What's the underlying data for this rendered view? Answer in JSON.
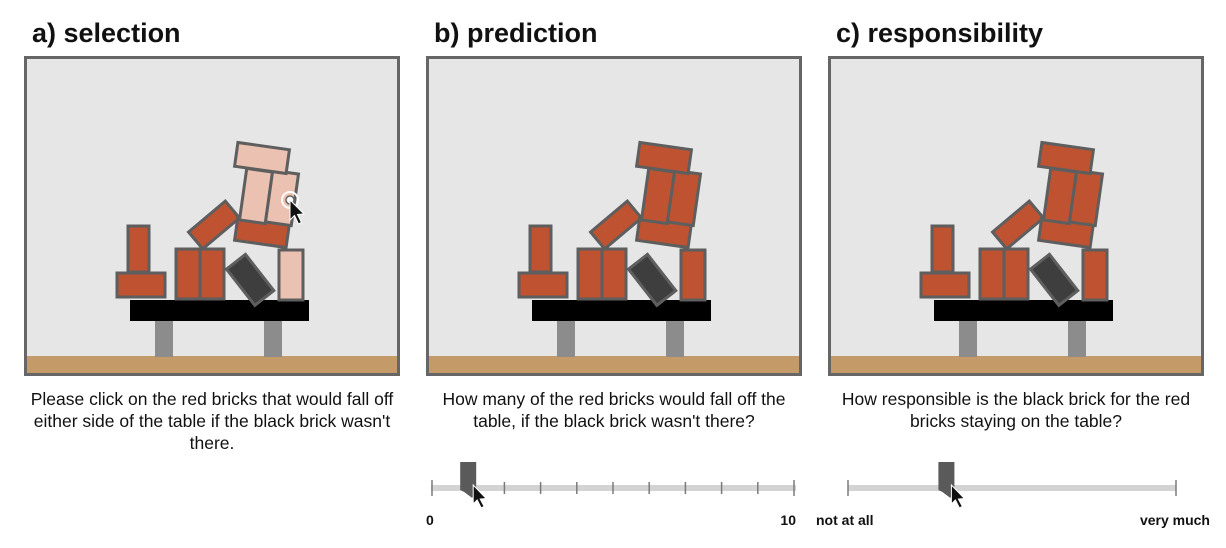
{
  "panels": [
    {
      "title": "a) selection",
      "question": "Please click on the red bricks that would fall off either side of the table if the black brick wasn't there."
    },
    {
      "title": "b) prediction",
      "question": "How many of the red bricks would fall off the table, if the black brick wasn't there?",
      "slider": {
        "min_label": "0",
        "max_label": "10",
        "min": 0,
        "max": 10,
        "ticks": 10,
        "value": 1
      }
    },
    {
      "title": "c) responsibility",
      "question": "How responsible is the black brick for the red bricks staying on the table?",
      "slider": {
        "min_label": "not at all",
        "max_label": "very much",
        "value_fraction": 0.3
      }
    }
  ],
  "colors": {
    "scene_bg": "#e6e6e6",
    "frame": "#666666",
    "floor": "#c49a68",
    "table_top": "#000000",
    "table_leg": "#8c8c8c",
    "red_brick": "#bf5331",
    "selected_brick": "#ebc1b1",
    "black_brick": "#3e3e3e",
    "brick_border": "#5e5e5e",
    "slider_track": "#d3d3d3",
    "slider_tick": "#7a7a7a",
    "slider_handle": "#5a5a5a"
  },
  "icons": [
    "mouse-pointer-icon",
    "click-target-icon",
    "slider-handle-icon"
  ]
}
